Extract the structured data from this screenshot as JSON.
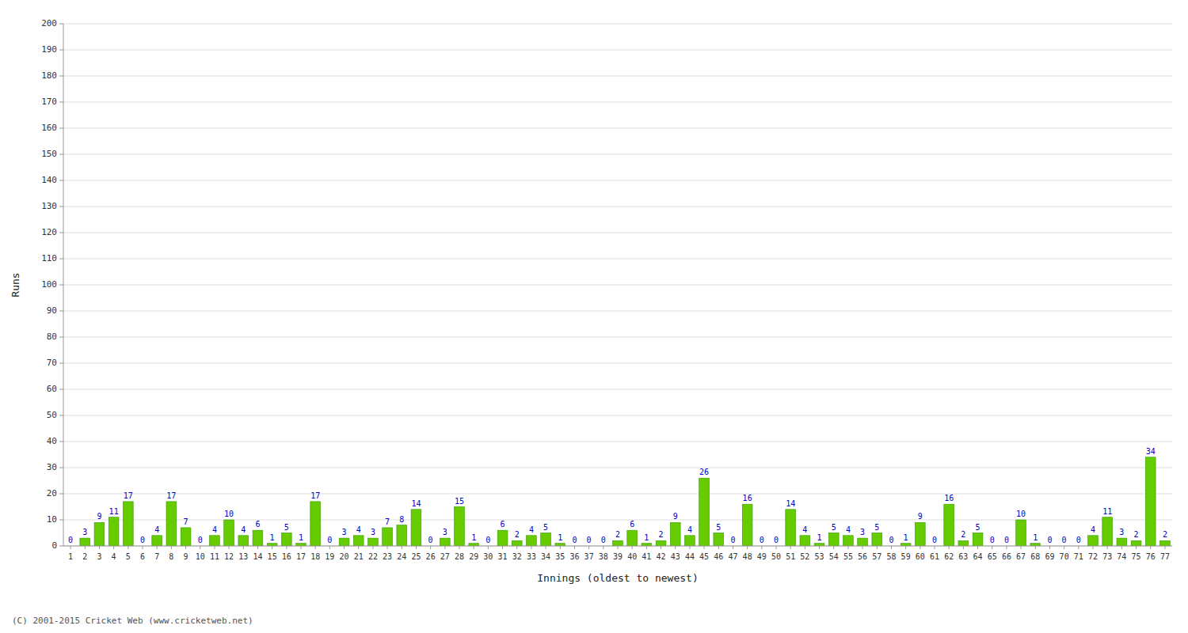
{
  "chart_data": {
    "type": "bar",
    "xlabel": "Innings (oldest to newest)",
    "ylabel": "Runs",
    "annotations": [
      "(C) 2001-2015 Cricket Web (www.cricketweb.net)"
    ],
    "categories": [
      "1",
      "2",
      "3",
      "4",
      "5",
      "6",
      "7",
      "8",
      "9",
      "10",
      "11",
      "12",
      "13",
      "14",
      "15",
      "16",
      "17",
      "18",
      "19",
      "20",
      "21",
      "22",
      "23",
      "24",
      "25",
      "26",
      "27",
      "28",
      "29",
      "30",
      "31",
      "32",
      "33",
      "34",
      "35",
      "36",
      "37",
      "38",
      "39",
      "40",
      "41",
      "42",
      "43",
      "44",
      "45",
      "46",
      "47",
      "48",
      "49",
      "50",
      "51",
      "52",
      "53",
      "54",
      "55",
      "56",
      "57",
      "58",
      "59",
      "60",
      "61",
      "62",
      "63",
      "64",
      "65",
      "66",
      "67",
      "68",
      "69",
      "70",
      "71",
      "72",
      "73",
      "74",
      "75",
      "76",
      "77"
    ],
    "values": [
      0,
      3,
      9,
      11,
      17,
      0,
      4,
      17,
      7,
      0,
      4,
      10,
      4,
      6,
      1,
      5,
      1,
      17,
      0,
      3,
      4,
      3,
      7,
      8,
      14,
      0,
      3,
      15,
      1,
      0,
      6,
      2,
      4,
      5,
      1,
      0,
      0,
      0,
      2,
      6,
      1,
      2,
      9,
      4,
      26,
      5,
      0,
      16,
      0,
      0,
      14,
      4,
      1,
      5,
      4,
      3,
      5,
      0,
      1,
      9,
      0,
      16,
      2,
      5,
      0,
      0,
      10,
      1,
      0,
      0,
      0,
      4,
      11,
      3,
      2,
      34,
      2
    ],
    "color": "#66cc00",
    "ylim": [
      0,
      200
    ],
    "yticks": [
      0,
      10,
      20,
      30,
      40,
      50,
      60,
      70,
      80,
      90,
      100,
      110,
      120,
      130,
      140,
      150,
      160,
      170,
      180,
      190,
      200
    ],
    "grid": true,
    "data_labels": true
  }
}
